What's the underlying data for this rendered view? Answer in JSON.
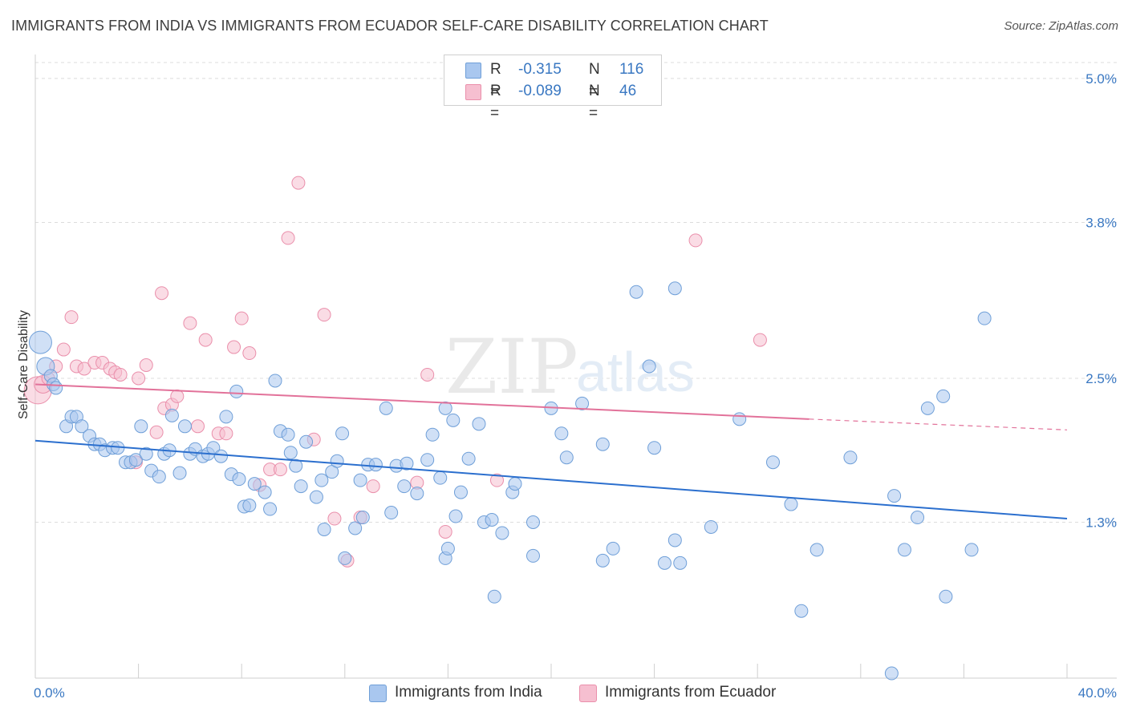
{
  "header": {
    "title": "IMMIGRANTS FROM INDIA VS IMMIGRANTS FROM ECUADOR SELF-CARE DISABILITY CORRELATION CHART",
    "source": "Source: ZipAtlas.com"
  },
  "watermark": {
    "text_zip": "ZIP",
    "text_atlas": "atlas"
  },
  "legend_top": {
    "rows": [
      {
        "r_label": "R =",
        "r_value": "-0.315",
        "n_label": "N =",
        "n_value": "116"
      },
      {
        "r_label": "R =",
        "r_value": "-0.089",
        "n_label": "N =",
        "n_value": "46"
      }
    ]
  },
  "legend_bottom": {
    "items": [
      {
        "label": "Immigrants from India"
      },
      {
        "label": "Immigrants from Ecuador"
      }
    ]
  },
  "colors": {
    "india_fill": "#a9c7ef",
    "india_stroke": "#6f9fd8",
    "india_line": "#2b6fce",
    "ecuador_fill": "#f6bfd0",
    "ecuador_stroke": "#ea8fab",
    "ecuador_line": "#e2729a",
    "grid": "#dcdcdc",
    "axis_text": "#3a78c2"
  },
  "chart_data": {
    "type": "scatter",
    "title": "IMMIGRANTS FROM INDIA VS IMMIGRANTS FROM ECUADOR SELF-CARE DISABILITY CORRELATION CHART",
    "xlabel": "",
    "ylabel": "Self-Care Disability",
    "xlim": [
      0,
      40
    ],
    "ylim": [
      0,
      5.2
    ],
    "x_tick_labels": [
      "0.0%",
      "40.0%"
    ],
    "y_ticks": [
      1.3,
      2.5,
      3.8,
      5.0
    ],
    "y_tick_labels": [
      "1.3%",
      "2.5%",
      "3.8%",
      "5.0%"
    ],
    "grid": true,
    "legend_position": "top-center",
    "series": [
      {
        "name": "Immigrants from India",
        "r": -0.315,
        "n": 116,
        "trend": {
          "x0": 0,
          "y0": 1.98,
          "x1": 40,
          "y1": 1.33
        },
        "points": [
          [
            0.2,
            2.8,
            3
          ],
          [
            0.4,
            2.6,
            2
          ],
          [
            0.6,
            2.52,
            1
          ],
          [
            0.7,
            2.45,
            1
          ],
          [
            0.8,
            2.42,
            1
          ],
          [
            1.2,
            2.1,
            1
          ],
          [
            1.4,
            2.18,
            1
          ],
          [
            1.6,
            2.18,
            1
          ],
          [
            1.8,
            2.1,
            1
          ],
          [
            2.1,
            2.02,
            1
          ],
          [
            2.3,
            1.95,
            1
          ],
          [
            2.5,
            1.95,
            1
          ],
          [
            2.7,
            1.9,
            1
          ],
          [
            3.0,
            1.92,
            1
          ],
          [
            3.2,
            1.92,
            1
          ],
          [
            3.5,
            1.8,
            1
          ],
          [
            3.7,
            1.8,
            1
          ],
          [
            3.9,
            1.82,
            1
          ],
          [
            4.1,
            2.1,
            1
          ],
          [
            4.3,
            1.87,
            1
          ],
          [
            4.5,
            1.73,
            1
          ],
          [
            4.8,
            1.68,
            1
          ],
          [
            5.0,
            1.87,
            1
          ],
          [
            5.2,
            1.9,
            1
          ],
          [
            5.3,
            2.19,
            1
          ],
          [
            5.6,
            1.71,
            1
          ],
          [
            5.8,
            2.1,
            1
          ],
          [
            6.0,
            1.87,
            1
          ],
          [
            6.2,
            1.91,
            1
          ],
          [
            6.5,
            1.85,
            1
          ],
          [
            6.7,
            1.87,
            1
          ],
          [
            6.9,
            1.92,
            1
          ],
          [
            7.2,
            1.85,
            1
          ],
          [
            7.4,
            2.18,
            1
          ],
          [
            7.6,
            1.7,
            1
          ],
          [
            7.8,
            2.39,
            1
          ],
          [
            7.9,
            1.66,
            1
          ],
          [
            8.1,
            1.43,
            1
          ],
          [
            8.3,
            1.44,
            1
          ],
          [
            8.5,
            1.62,
            1
          ],
          [
            8.9,
            1.55,
            1
          ],
          [
            9.1,
            1.41,
            1
          ],
          [
            9.3,
            2.48,
            1
          ],
          [
            9.5,
            2.06,
            1
          ],
          [
            9.8,
            2.03,
            1
          ],
          [
            9.9,
            1.88,
            1
          ],
          [
            10.1,
            1.77,
            1
          ],
          [
            10.3,
            1.6,
            1
          ],
          [
            10.5,
            1.97,
            1
          ],
          [
            10.9,
            1.51,
            1
          ],
          [
            11.1,
            1.65,
            1
          ],
          [
            11.2,
            1.24,
            1
          ],
          [
            11.5,
            1.72,
            1
          ],
          [
            11.7,
            1.81,
            1
          ],
          [
            11.9,
            2.04,
            1
          ],
          [
            12.0,
            1.0,
            1
          ],
          [
            12.4,
            1.25,
            1
          ],
          [
            12.6,
            1.65,
            1
          ],
          [
            12.7,
            1.34,
            1
          ],
          [
            12.9,
            1.78,
            1
          ],
          [
            13.2,
            1.78,
            1
          ],
          [
            13.6,
            2.25,
            1
          ],
          [
            13.8,
            1.38,
            1
          ],
          [
            14.0,
            1.77,
            1
          ],
          [
            14.3,
            1.6,
            1
          ],
          [
            14.4,
            1.79,
            1
          ],
          [
            14.8,
            1.54,
            1
          ],
          [
            15.2,
            1.82,
            1
          ],
          [
            15.4,
            2.03,
            1
          ],
          [
            15.7,
            1.67,
            1
          ],
          [
            15.9,
            2.25,
            1
          ],
          [
            15.9,
            1.0,
            1
          ],
          [
            16.0,
            1.08,
            1
          ],
          [
            16.2,
            2.15,
            1
          ],
          [
            16.3,
            1.35,
            1
          ],
          [
            16.5,
            1.55,
            1
          ],
          [
            16.8,
            1.83,
            1
          ],
          [
            17.2,
            2.12,
            1
          ],
          [
            17.4,
            1.3,
            1
          ],
          [
            17.7,
            1.32,
            1
          ],
          [
            17.8,
            0.68,
            1
          ],
          [
            18.1,
            1.21,
            1
          ],
          [
            18.5,
            1.55,
            1
          ],
          [
            18.6,
            1.62,
            1
          ],
          [
            19.3,
            1.3,
            1
          ],
          [
            19.3,
            1.02,
            1
          ],
          [
            20.0,
            2.25,
            1
          ],
          [
            20.4,
            2.04,
            1
          ],
          [
            20.6,
            1.84,
            1
          ],
          [
            21.2,
            2.29,
            1
          ],
          [
            22.0,
            0.98,
            1
          ],
          [
            22.0,
            1.95,
            1
          ],
          [
            22.4,
            1.08,
            1
          ],
          [
            23.3,
            3.22,
            1
          ],
          [
            23.8,
            2.6,
            1
          ],
          [
            24.0,
            1.92,
            1
          ],
          [
            24.4,
            0.96,
            1
          ],
          [
            24.8,
            3.25,
            1
          ],
          [
            24.8,
            1.15,
            1
          ],
          [
            25.0,
            0.96,
            1
          ],
          [
            26.2,
            1.26,
            1
          ],
          [
            27.3,
            2.16,
            1
          ],
          [
            28.6,
            1.8,
            1
          ],
          [
            29.3,
            1.45,
            1
          ],
          [
            29.7,
            0.56,
            1
          ],
          [
            30.3,
            1.07,
            1
          ],
          [
            31.6,
            1.84,
            1
          ],
          [
            33.2,
            0.04,
            1
          ],
          [
            33.3,
            1.52,
            1
          ],
          [
            33.7,
            1.07,
            1
          ],
          [
            34.2,
            1.34,
            1
          ],
          [
            34.6,
            2.25,
            1
          ],
          [
            35.2,
            2.35,
            1
          ],
          [
            35.3,
            0.68,
            1
          ],
          [
            36.3,
            1.07,
            1
          ],
          [
            36.8,
            3.0,
            1
          ]
        ]
      },
      {
        "name": "Immigrants from Ecuador",
        "r": -0.089,
        "n": 46,
        "trend": {
          "x0": 0,
          "y0": 2.45,
          "x1": 30,
          "y1": 2.16,
          "dash_x1": 40,
          "dash_y1": 2.07
        },
        "points": [
          [
            0.1,
            2.4,
            4
          ],
          [
            0.3,
            2.45,
            2
          ],
          [
            0.5,
            2.5,
            1
          ],
          [
            0.8,
            2.6,
            1
          ],
          [
            1.1,
            2.74,
            1
          ],
          [
            1.4,
            3.01,
            1
          ],
          [
            1.6,
            2.6,
            1
          ],
          [
            1.9,
            2.58,
            1
          ],
          [
            2.3,
            2.63,
            1
          ],
          [
            2.6,
            2.63,
            1
          ],
          [
            2.9,
            2.58,
            1
          ],
          [
            3.1,
            2.55,
            1
          ],
          [
            3.3,
            2.53,
            1
          ],
          [
            3.9,
            1.8,
            1
          ],
          [
            4.0,
            2.5,
            1
          ],
          [
            4.3,
            2.61,
            1
          ],
          [
            4.7,
            2.05,
            1
          ],
          [
            4.9,
            3.21,
            1
          ],
          [
            5.0,
            2.25,
            1
          ],
          [
            5.3,
            2.28,
            1
          ],
          [
            5.5,
            2.35,
            1
          ],
          [
            6.0,
            2.96,
            1
          ],
          [
            6.3,
            2.1,
            1
          ],
          [
            6.6,
            2.82,
            1
          ],
          [
            7.1,
            2.04,
            1
          ],
          [
            7.4,
            2.04,
            1
          ],
          [
            7.7,
            2.76,
            1
          ],
          [
            8.0,
            3.0,
            1
          ],
          [
            8.3,
            2.71,
            1
          ],
          [
            8.7,
            1.61,
            1
          ],
          [
            9.1,
            1.74,
            1
          ],
          [
            9.5,
            1.74,
            1
          ],
          [
            9.8,
            3.67,
            1
          ],
          [
            10.2,
            4.13,
            1
          ],
          [
            10.8,
            1.99,
            1
          ],
          [
            11.2,
            3.03,
            1
          ],
          [
            11.6,
            1.33,
            1
          ],
          [
            12.1,
            0.98,
            1
          ],
          [
            12.6,
            1.34,
            1
          ],
          [
            13.1,
            1.6,
            1
          ],
          [
            14.8,
            1.63,
            1
          ],
          [
            15.2,
            2.53,
            1
          ],
          [
            15.9,
            1.22,
            1
          ],
          [
            17.9,
            1.65,
            1
          ],
          [
            25.6,
            3.65,
            1
          ],
          [
            28.1,
            2.82,
            1
          ]
        ]
      }
    ]
  }
}
